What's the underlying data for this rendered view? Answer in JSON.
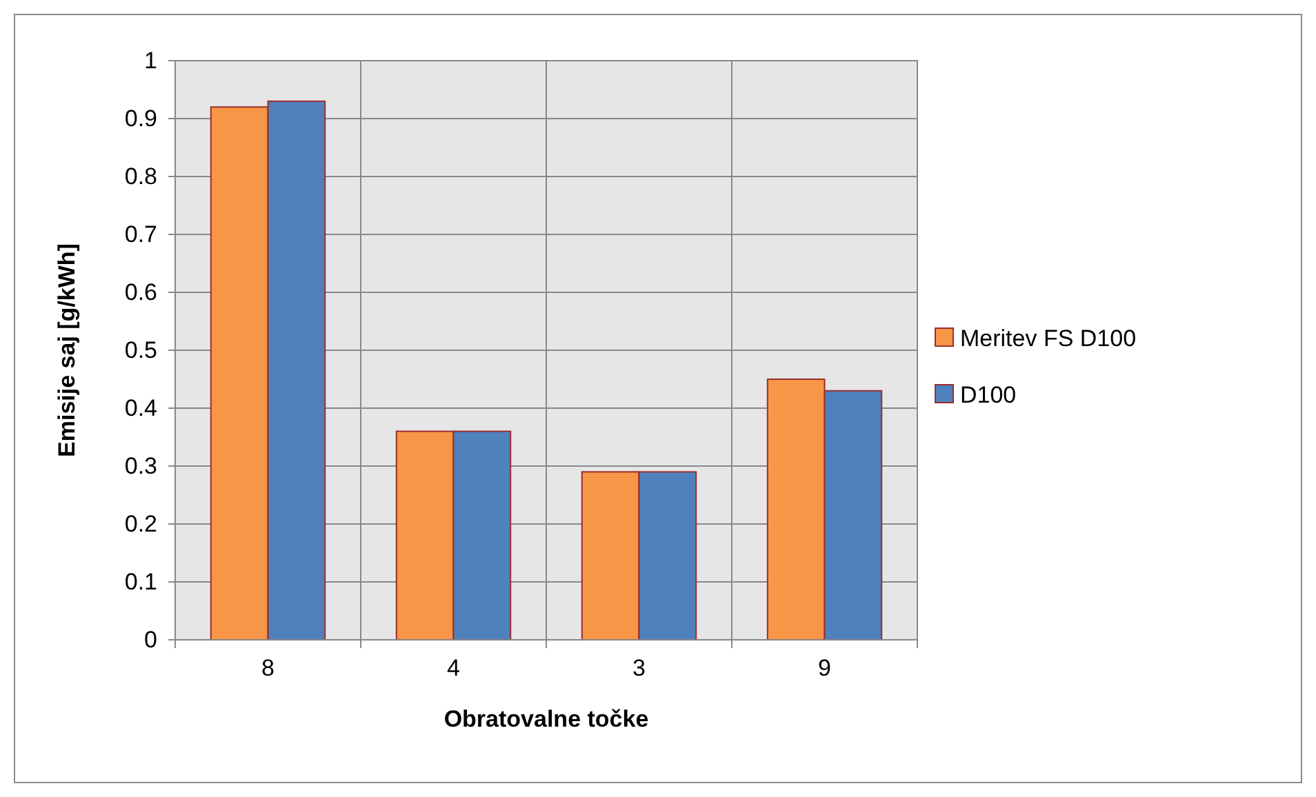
{
  "chart_data": {
    "type": "bar",
    "xlabel": "Obratovalne točke",
    "ylabel": "Emisije saj [g/kWh]",
    "categories": [
      "8",
      "4",
      "3",
      "9"
    ],
    "series": [
      {
        "name": "Meritev FS D100",
        "color": "#f79646",
        "values": [
          0.92,
          0.36,
          0.29,
          0.45
        ]
      },
      {
        "name": "D100",
        "color": "#4f81bd",
        "values": [
          0.93,
          0.36,
          0.29,
          0.43
        ]
      }
    ],
    "ylim": [
      0,
      1
    ],
    "yticks": [
      0,
      0.1,
      0.2,
      0.3,
      0.4,
      0.5,
      0.6,
      0.7,
      0.8,
      0.9,
      1
    ],
    "grid": true,
    "legend": "right"
  }
}
